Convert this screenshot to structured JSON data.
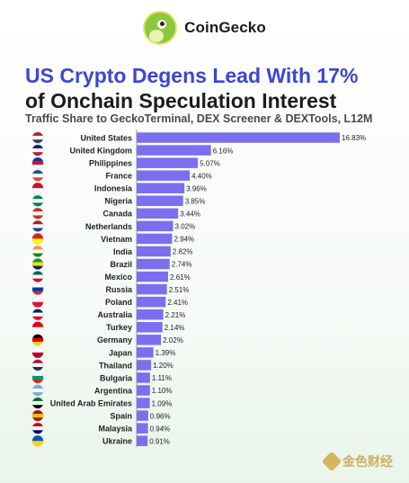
{
  "brand": {
    "name": "CoinGecko",
    "icon": "gecko-logo-icon"
  },
  "title_line1": "US Crypto Degens Lead With 17%",
  "title_line2": "of Onchain Speculation Interest",
  "subtitle": "Traffic Share to GeckoTerminal, DEX Screener & DEXTools, L12M",
  "watermark": "金色财经",
  "colors": {
    "bar": "#7b6ff0",
    "title_accent": "#3c46d3"
  },
  "chart_data": {
    "type": "bar",
    "orientation": "horizontal",
    "title": "US Crypto Degens Lead With 17% of Onchain Speculation Interest",
    "subtitle": "Traffic Share to GeckoTerminal, DEX Screener & DEXTools, L12M",
    "xlabel": "",
    "ylabel": "",
    "xlim": [
      0,
      16.83
    ],
    "categories": [
      "United States",
      "United Kingdom",
      "Philippines",
      "France",
      "Indonesia",
      "Nigeria",
      "Canada",
      "Netherlands",
      "Vietnam",
      "India",
      "Brazil",
      "Mexico",
      "Russia",
      "Poland",
      "Australia",
      "Turkey",
      "Germany",
      "Japan",
      "Thailand",
      "Bulgaria",
      "Argentina",
      "United Arab Emirates",
      "Spain",
      "Malaysia",
      "Ukraine"
    ],
    "values": [
      16.83,
      6.16,
      5.07,
      4.4,
      3.96,
      3.85,
      3.44,
      3.02,
      2.94,
      2.82,
      2.74,
      2.61,
      2.51,
      2.41,
      2.21,
      2.14,
      2.02,
      1.39,
      1.2,
      1.11,
      1.1,
      1.09,
      0.96,
      0.94,
      0.91
    ],
    "value_labels": [
      "16.83%",
      "6.16%",
      "5.07%",
      "4.40%",
      "3.96%",
      "3.85%",
      "3.44%",
      "3.02%",
      "2.94%",
      "2.82%",
      "2.74%",
      "2.61%",
      "2.51%",
      "2.41%",
      "2.21%",
      "2.14%",
      "2.02%",
      "1.39%",
      "1.20%",
      "1.11%",
      "1.10%",
      "1.09%",
      "0.96%",
      "0.94%",
      "0.91%"
    ],
    "flags": [
      {
        "icon": "flag-us-icon",
        "colors": [
          "#b22234",
          "#ffffff",
          "#3c3b6e"
        ]
      },
      {
        "icon": "flag-gb-icon",
        "colors": [
          "#012169",
          "#ffffff",
          "#c8102e"
        ]
      },
      {
        "icon": "flag-ph-icon",
        "colors": [
          "#0038a8",
          "#ce1126",
          "#ffffff"
        ]
      },
      {
        "icon": "flag-fr-icon",
        "colors": [
          "#0055a4",
          "#ffffff",
          "#ef4135"
        ]
      },
      {
        "icon": "flag-id-icon",
        "colors": [
          "#ce1126",
          "#ffffff"
        ]
      },
      {
        "icon": "flag-ng-icon",
        "colors": [
          "#008751",
          "#ffffff",
          "#008751"
        ]
      },
      {
        "icon": "flag-ca-icon",
        "colors": [
          "#d52b1e",
          "#ffffff",
          "#d52b1e"
        ]
      },
      {
        "icon": "flag-nl-icon",
        "colors": [
          "#ae1c28",
          "#ffffff",
          "#21468b"
        ]
      },
      {
        "icon": "flag-vn-icon",
        "colors": [
          "#da251d",
          "#ffff00"
        ]
      },
      {
        "icon": "flag-in-icon",
        "colors": [
          "#ff9933",
          "#ffffff",
          "#138808"
        ]
      },
      {
        "icon": "flag-br-icon",
        "colors": [
          "#009c3b",
          "#ffdf00",
          "#002776"
        ]
      },
      {
        "icon": "flag-mx-icon",
        "colors": [
          "#006847",
          "#ffffff",
          "#ce1126"
        ]
      },
      {
        "icon": "flag-ru-icon",
        "colors": [
          "#ffffff",
          "#0039a6",
          "#d52b1e"
        ]
      },
      {
        "icon": "flag-pl-icon",
        "colors": [
          "#ffffff",
          "#dc143c"
        ]
      },
      {
        "icon": "flag-au-icon",
        "colors": [
          "#012169",
          "#ffffff",
          "#e4002b"
        ]
      },
      {
        "icon": "flag-tr-icon",
        "colors": [
          "#e30a17",
          "#ffffff"
        ]
      },
      {
        "icon": "flag-de-icon",
        "colors": [
          "#000000",
          "#dd0000",
          "#ffce00"
        ]
      },
      {
        "icon": "flag-jp-icon",
        "colors": [
          "#ffffff",
          "#bc002d"
        ]
      },
      {
        "icon": "flag-th-icon",
        "colors": [
          "#a51931",
          "#f4f5f8",
          "#2d2a4a"
        ]
      },
      {
        "icon": "flag-bg-icon",
        "colors": [
          "#ffffff",
          "#00966e",
          "#d62612"
        ]
      },
      {
        "icon": "flag-ar-icon",
        "colors": [
          "#74acdf",
          "#ffffff",
          "#74acdf"
        ]
      },
      {
        "icon": "flag-ae-icon",
        "colors": [
          "#00732f",
          "#ffffff",
          "#000000"
        ]
      },
      {
        "icon": "flag-es-icon",
        "colors": [
          "#aa151b",
          "#f1bf00",
          "#aa151b"
        ]
      },
      {
        "icon": "flag-my-icon",
        "colors": [
          "#cc0001",
          "#ffffff",
          "#010066"
        ]
      },
      {
        "icon": "flag-ua-icon",
        "colors": [
          "#0057b7",
          "#ffd700"
        ]
      }
    ],
    "grid": false,
    "legend": "none"
  }
}
